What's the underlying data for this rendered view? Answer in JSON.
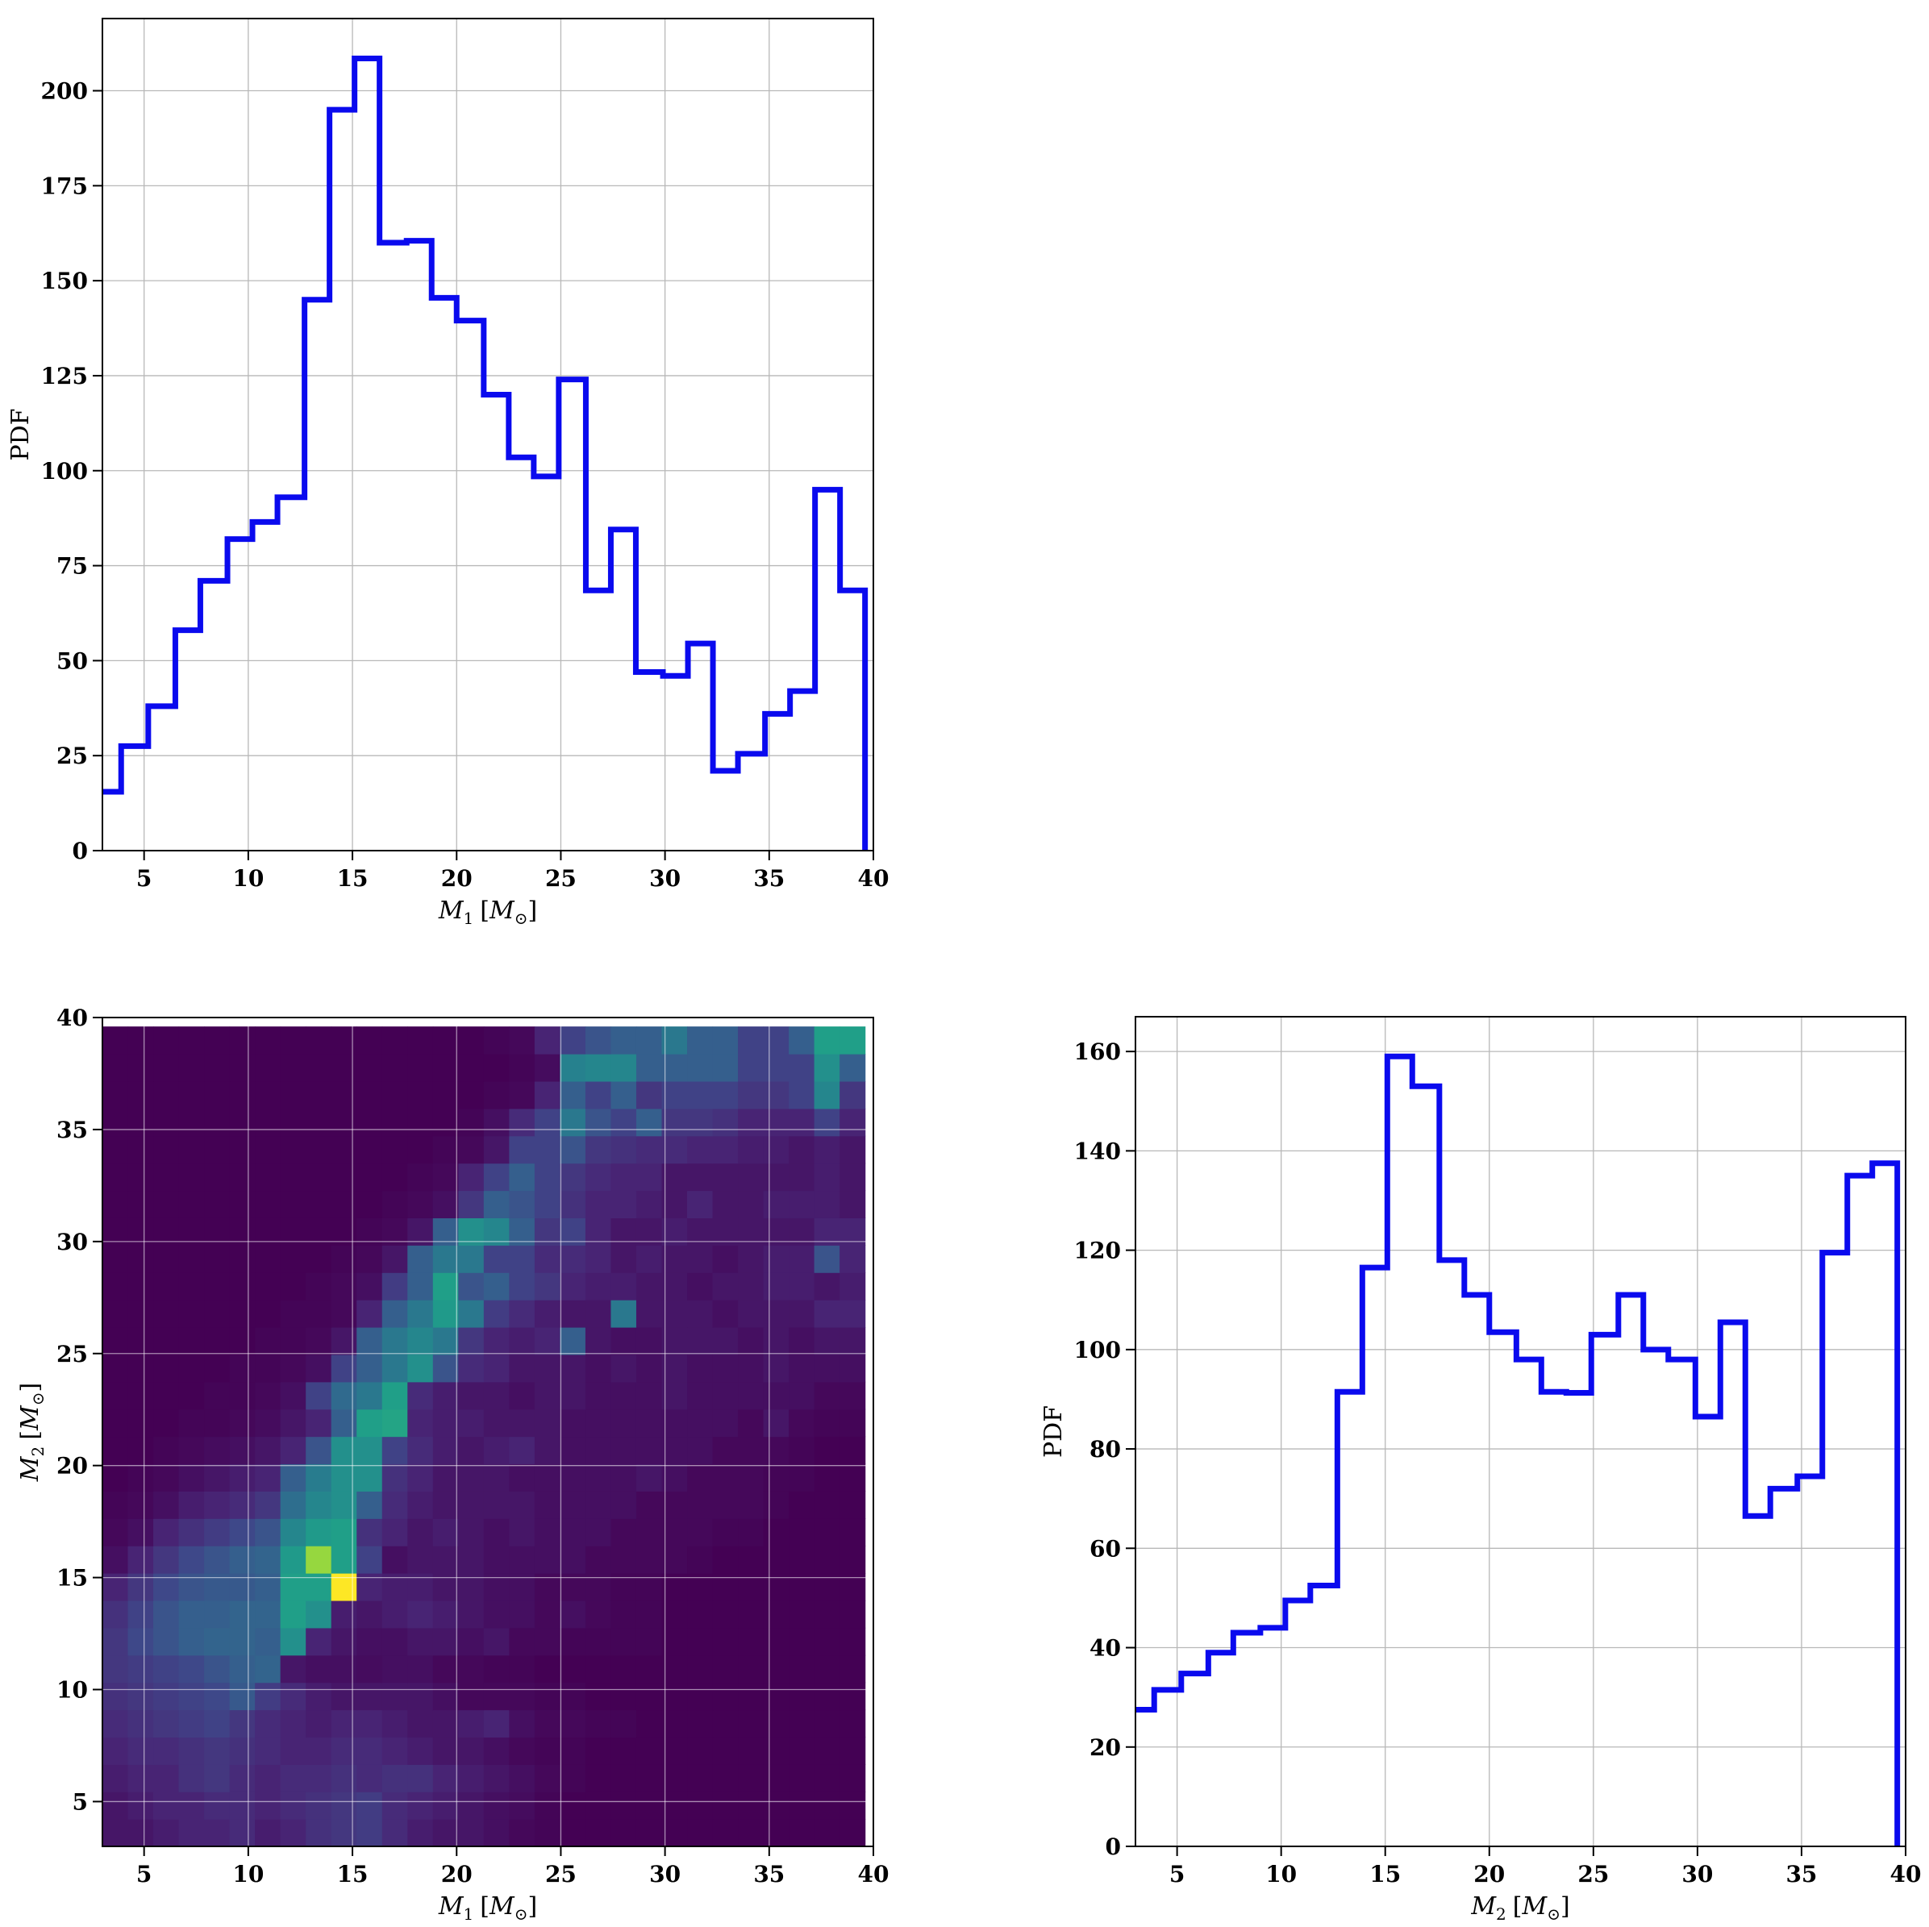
{
  "chart_data": [
    {
      "id": "m1-hist",
      "type": "histogram-step",
      "xlabel": "M_1 [M_⊙]",
      "xlabel_parts": {
        "main": "M",
        "sub": "1",
        "unit_main": "M",
        "unit_sub": "⊙"
      },
      "ylabel": "PDF",
      "xlim": [
        3,
        40
      ],
      "ylim": [
        0,
        219
      ],
      "xticks": [
        5,
        10,
        15,
        20,
        25,
        30,
        35,
        40
      ],
      "yticks": [
        0,
        25,
        50,
        75,
        100,
        125,
        150,
        175,
        200
      ],
      "grid": true,
      "color": "#0a0aee",
      "bin_edges": [
        3.0,
        3.9,
        5.2,
        6.5,
        7.7,
        9.0,
        10.2,
        11.4,
        12.7,
        13.9,
        15.1,
        16.3,
        17.6,
        18.8,
        20.0,
        21.3,
        22.5,
        23.7,
        24.9,
        26.2,
        27.4,
        28.6,
        29.9,
        31.1,
        32.3,
        33.5,
        34.8,
        36.0,
        37.2,
        38.4,
        39.6
      ],
      "values": [
        15.5,
        27.5,
        38,
        58,
        71,
        82,
        86.5,
        93,
        145,
        195,
        208.5,
        160,
        160.5,
        145.5,
        139.5,
        120,
        103.5,
        98.5,
        124,
        68.5,
        84.5,
        47,
        46,
        54.5,
        21,
        25.5,
        36,
        42,
        95,
        68.5
      ]
    },
    {
      "id": "m1-m2-heatmap",
      "type": "heatmap",
      "xlabel": "M_1 [M_⊙]",
      "xlabel_parts": {
        "main": "M",
        "sub": "1",
        "unit_main": "M",
        "unit_sub": "⊙"
      },
      "ylabel": "M_2 [M_⊙]",
      "ylabel_parts": {
        "main": "M",
        "sub": "2",
        "unit_main": "M",
        "unit_sub": "⊙"
      },
      "xlim": [
        3,
        40
      ],
      "ylim": [
        3,
        40
      ],
      "data_extent": [
        3,
        39.6
      ],
      "xticks": [
        5,
        10,
        15,
        20,
        25,
        30,
        35,
        40
      ],
      "yticks": [
        5,
        10,
        15,
        20,
        25,
        30,
        35,
        40
      ],
      "grid": true,
      "colormap": "viridis",
      "colormap_stops": [
        "#440154",
        "#482878",
        "#3e4989",
        "#31688e",
        "#26828e",
        "#1f9e89",
        "#35b779",
        "#6ece58",
        "#b5de2b",
        "#fde725"
      ],
      "grid_size": 30,
      "value_range": [
        0,
        1
      ],
      "values_description": "rows from M2 low to high, columns from M1 low to high; intensities estimated from colour",
      "values": [
        [
          0.06,
          0.06,
          0.08,
          0.1,
          0.1,
          0.12,
          0.08,
          0.1,
          0.14,
          0.16,
          0.18,
          0.12,
          0.08,
          0.06,
          0.06,
          0.04,
          0.02,
          0.01,
          0,
          0,
          0,
          0,
          0,
          0,
          0,
          0,
          0,
          0,
          0,
          0
        ],
        [
          0.06,
          0.08,
          0.1,
          0.1,
          0.12,
          0.12,
          0.1,
          0.12,
          0.14,
          0.16,
          0.18,
          0.12,
          0.1,
          0.08,
          0.06,
          0.04,
          0.03,
          0.01,
          0,
          0,
          0,
          0,
          0,
          0,
          0,
          0,
          0,
          0,
          0,
          0
        ],
        [
          0.08,
          0.1,
          0.1,
          0.14,
          0.16,
          0.12,
          0.1,
          0.12,
          0.12,
          0.14,
          0.12,
          0.14,
          0.14,
          0.1,
          0.08,
          0.06,
          0.04,
          0.02,
          0.01,
          0,
          0,
          0,
          0,
          0,
          0,
          0,
          0,
          0,
          0,
          0
        ],
        [
          0.1,
          0.12,
          0.12,
          0.14,
          0.16,
          0.14,
          0.12,
          0.1,
          0.1,
          0.12,
          0.12,
          0.1,
          0.08,
          0.06,
          0.06,
          0.04,
          0.02,
          0.01,
          0.01,
          0,
          0,
          0,
          0,
          0,
          0,
          0,
          0,
          0,
          0,
          0
        ],
        [
          0.12,
          0.14,
          0.16,
          0.18,
          0.2,
          0.16,
          0.12,
          0.1,
          0.08,
          0.1,
          0.1,
          0.08,
          0.06,
          0.06,
          0.08,
          0.1,
          0.04,
          0.02,
          0.02,
          0.01,
          0.01,
          0,
          0,
          0,
          0,
          0,
          0,
          0,
          0,
          0
        ],
        [
          0.14,
          0.16,
          0.18,
          0.2,
          0.22,
          0.28,
          0.18,
          0.12,
          0.08,
          0.06,
          0.06,
          0.06,
          0.06,
          0.04,
          0.02,
          0.02,
          0.02,
          0.01,
          0.01,
          0,
          0,
          0,
          0,
          0,
          0,
          0,
          0,
          0,
          0,
          0
        ],
        [
          0.16,
          0.18,
          0.2,
          0.22,
          0.26,
          0.3,
          0.32,
          0.06,
          0.04,
          0.04,
          0.03,
          0.04,
          0.04,
          0.02,
          0.02,
          0.01,
          0.01,
          0,
          0,
          0,
          0,
          0,
          0,
          0,
          0,
          0,
          0,
          0,
          0,
          0
        ],
        [
          0.16,
          0.22,
          0.26,
          0.3,
          0.32,
          0.32,
          0.3,
          0.5,
          0.1,
          0.06,
          0.04,
          0.04,
          0.06,
          0.06,
          0.04,
          0.06,
          0.02,
          0.02,
          0.01,
          0.01,
          0.01,
          0.01,
          0,
          0,
          0,
          0,
          0,
          0,
          0,
          0
        ],
        [
          0.14,
          0.2,
          0.26,
          0.3,
          0.3,
          0.32,
          0.32,
          0.56,
          0.5,
          0.08,
          0.06,
          0.08,
          0.1,
          0.08,
          0.06,
          0.04,
          0.04,
          0.02,
          0.04,
          0.02,
          0.01,
          0.01,
          0,
          0,
          0,
          0,
          0,
          0,
          0,
          0
        ],
        [
          0.1,
          0.16,
          0.22,
          0.26,
          0.28,
          0.28,
          0.3,
          0.56,
          0.56,
          1.0,
          0.1,
          0.08,
          0.08,
          0.06,
          0.06,
          0.04,
          0.04,
          0.02,
          0.02,
          0.02,
          0.01,
          0.01,
          0,
          0,
          0,
          0,
          0,
          0,
          0,
          0
        ],
        [
          0.04,
          0.1,
          0.16,
          0.22,
          0.26,
          0.3,
          0.32,
          0.54,
          0.84,
          0.56,
          0.2,
          0.04,
          0.06,
          0.06,
          0.06,
          0.04,
          0.04,
          0.04,
          0.04,
          0.02,
          0.02,
          0.02,
          0.02,
          0.01,
          0,
          0,
          0,
          0,
          0,
          0
        ],
        [
          0.02,
          0.04,
          0.1,
          0.14,
          0.18,
          0.22,
          0.26,
          0.46,
          0.54,
          0.56,
          0.14,
          0.1,
          0.06,
          0.08,
          0.06,
          0.04,
          0.06,
          0.04,
          0.04,
          0.04,
          0.02,
          0.02,
          0.02,
          0.02,
          0.01,
          0.01,
          0,
          0,
          0,
          0
        ],
        [
          0.01,
          0.02,
          0.04,
          0.08,
          0.1,
          0.12,
          0.16,
          0.36,
          0.46,
          0.5,
          0.3,
          0.12,
          0.08,
          0.06,
          0.06,
          0.06,
          0.06,
          0.04,
          0.04,
          0.04,
          0.04,
          0.02,
          0.02,
          0.02,
          0.02,
          0.02,
          0.01,
          0,
          0,
          0
        ],
        [
          0,
          0.01,
          0.02,
          0.04,
          0.06,
          0.08,
          0.1,
          0.3,
          0.42,
          0.5,
          0.5,
          0.14,
          0.1,
          0.06,
          0.06,
          0.06,
          0.04,
          0.04,
          0.04,
          0.04,
          0.04,
          0.06,
          0.04,
          0.02,
          0.02,
          0.02,
          0.01,
          0.01,
          0,
          0
        ],
        [
          0,
          0,
          0.01,
          0.02,
          0.03,
          0.04,
          0.06,
          0.1,
          0.26,
          0.5,
          0.5,
          0.2,
          0.12,
          0.08,
          0.06,
          0.08,
          0.1,
          0.06,
          0.04,
          0.04,
          0.04,
          0.04,
          0.04,
          0.04,
          0.02,
          0.02,
          0.02,
          0.01,
          0,
          0
        ],
        [
          0,
          0,
          0,
          0.01,
          0.01,
          0.02,
          0.03,
          0.06,
          0.1,
          0.3,
          0.56,
          0.58,
          0.1,
          0.08,
          0.08,
          0.06,
          0.06,
          0.06,
          0.04,
          0.04,
          0.04,
          0.04,
          0.04,
          0.04,
          0.04,
          0.02,
          0.06,
          0.02,
          0.01,
          0.01
        ],
        [
          0,
          0,
          0,
          0,
          0.01,
          0.01,
          0.02,
          0.04,
          0.2,
          0.34,
          0.4,
          0.56,
          0.12,
          0.08,
          0.06,
          0.06,
          0.04,
          0.06,
          0.06,
          0.04,
          0.04,
          0.04,
          0.06,
          0.04,
          0.04,
          0.04,
          0.04,
          0.04,
          0.02,
          0.02
        ],
        [
          0,
          0,
          0,
          0,
          0,
          0.01,
          0.01,
          0.02,
          0.04,
          0.2,
          0.3,
          0.4,
          0.5,
          0.26,
          0.12,
          0.1,
          0.06,
          0.06,
          0.06,
          0.04,
          0.06,
          0.04,
          0.06,
          0.04,
          0.04,
          0.04,
          0.06,
          0.04,
          0.04,
          0.04
        ],
        [
          0,
          0,
          0,
          0,
          0,
          0,
          0.01,
          0.01,
          0.02,
          0.06,
          0.3,
          0.4,
          0.46,
          0.4,
          0.16,
          0.1,
          0.08,
          0.1,
          0.3,
          0.06,
          0.04,
          0.04,
          0.06,
          0.06,
          0.06,
          0.04,
          0.06,
          0.04,
          0.06,
          0.06
        ],
        [
          0,
          0,
          0,
          0,
          0,
          0,
          0,
          0.01,
          0.01,
          0.02,
          0.1,
          0.3,
          0.4,
          0.54,
          0.4,
          0.18,
          0.12,
          0.08,
          0.06,
          0.06,
          0.4,
          0.06,
          0.06,
          0.06,
          0.04,
          0.06,
          0.06,
          0.06,
          0.1,
          0.1
        ],
        [
          0,
          0,
          0,
          0,
          0,
          0,
          0,
          0,
          0.01,
          0.02,
          0.04,
          0.18,
          0.3,
          0.56,
          0.26,
          0.3,
          0.2,
          0.16,
          0.1,
          0.08,
          0.08,
          0.06,
          0.06,
          0.04,
          0.06,
          0.06,
          0.08,
          0.08,
          0.06,
          0.08
        ],
        [
          0,
          0,
          0,
          0,
          0,
          0,
          0,
          0,
          0,
          0.01,
          0.02,
          0.06,
          0.3,
          0.4,
          0.4,
          0.2,
          0.2,
          0.12,
          0.12,
          0.1,
          0.06,
          0.08,
          0.06,
          0.06,
          0.04,
          0.06,
          0.08,
          0.08,
          0.26,
          0.1
        ],
        [
          0,
          0,
          0,
          0,
          0,
          0,
          0,
          0,
          0,
          0,
          0.01,
          0.02,
          0.06,
          0.3,
          0.5,
          0.46,
          0.3,
          0.16,
          0.2,
          0.1,
          0.06,
          0.06,
          0.08,
          0.06,
          0.06,
          0.06,
          0.06,
          0.06,
          0.1,
          0.1
        ],
        [
          0,
          0,
          0,
          0,
          0,
          0,
          0,
          0,
          0,
          0,
          0,
          0.01,
          0.02,
          0.04,
          0.16,
          0.3,
          0.26,
          0.2,
          0.14,
          0.1,
          0.1,
          0.08,
          0.06,
          0.1,
          0.06,
          0.06,
          0.08,
          0.08,
          0.08,
          0.06
        ],
        [
          0,
          0,
          0,
          0,
          0,
          0,
          0,
          0,
          0,
          0,
          0,
          0,
          0.01,
          0.02,
          0.1,
          0.2,
          0.3,
          0.2,
          0.16,
          0.12,
          0.1,
          0.1,
          0.06,
          0.06,
          0.06,
          0.06,
          0.06,
          0.06,
          0.08,
          0.06
        ],
        [
          0,
          0,
          0,
          0,
          0,
          0,
          0,
          0,
          0,
          0,
          0,
          0,
          0,
          0.01,
          0.02,
          0.06,
          0.2,
          0.2,
          0.26,
          0.16,
          0.14,
          0.12,
          0.12,
          0.1,
          0.1,
          0.08,
          0.08,
          0.06,
          0.08,
          0.06
        ],
        [
          0,
          0,
          0,
          0,
          0,
          0,
          0,
          0,
          0,
          0,
          0,
          0,
          0,
          0,
          0.01,
          0.04,
          0.12,
          0.2,
          0.4,
          0.26,
          0.2,
          0.3,
          0.16,
          0.16,
          0.14,
          0.1,
          0.1,
          0.1,
          0.2,
          0.1
        ],
        [
          0,
          0,
          0,
          0,
          0,
          0,
          0,
          0,
          0,
          0,
          0,
          0,
          0,
          0,
          0,
          0.01,
          0.02,
          0.1,
          0.3,
          0.2,
          0.3,
          0.16,
          0.2,
          0.2,
          0.2,
          0.16,
          0.16,
          0.2,
          0.46,
          0.16
        ],
        [
          0,
          0,
          0,
          0,
          0,
          0,
          0,
          0,
          0,
          0,
          0,
          0,
          0,
          0,
          0,
          0,
          0.01,
          0.03,
          0.44,
          0.46,
          0.46,
          0.3,
          0.3,
          0.3,
          0.3,
          0.2,
          0.2,
          0.2,
          0.5,
          0.3
        ],
        [
          0,
          0,
          0,
          0,
          0,
          0,
          0,
          0,
          0,
          0,
          0,
          0,
          0,
          0,
          0,
          0.01,
          0.02,
          0.1,
          0.2,
          0.26,
          0.3,
          0.3,
          0.4,
          0.3,
          0.3,
          0.2,
          0.2,
          0.3,
          0.56,
          0.56
        ]
      ]
    },
    {
      "id": "m2-hist",
      "type": "histogram-step",
      "xlabel": "M_2 [M_⊙]",
      "xlabel_parts": {
        "main": "M",
        "sub": "2",
        "unit_main": "M",
        "unit_sub": "⊙"
      },
      "ylabel": "PDF",
      "xlim": [
        3,
        40
      ],
      "ylim": [
        0,
        167
      ],
      "xticks": [
        5,
        10,
        15,
        20,
        25,
        30,
        35,
        40
      ],
      "yticks": [
        0,
        20,
        40,
        60,
        80,
        100,
        120,
        140,
        160
      ],
      "grid": true,
      "color": "#0a0aee",
      "bin_edges": [
        3.0,
        3.9,
        5.2,
        6.5,
        7.7,
        9.0,
        10.2,
        11.4,
        12.7,
        13.9,
        15.1,
        16.3,
        17.6,
        18.8,
        20.0,
        21.3,
        22.5,
        23.7,
        24.9,
        26.2,
        27.4,
        28.6,
        29.9,
        31.1,
        32.3,
        33.5,
        34.8,
        36.0,
        37.2,
        38.4,
        39.6
      ],
      "values": [
        27.5,
        31.5,
        34.8,
        39,
        43,
        44,
        49.5,
        52.5,
        91.5,
        116.5,
        159,
        153,
        118,
        111,
        103.5,
        98,
        91.5,
        91.3,
        103,
        111,
        100,
        98,
        86.5,
        105.5,
        66.5,
        72,
        74.5,
        119.5,
        135,
        137.5
      ]
    }
  ]
}
